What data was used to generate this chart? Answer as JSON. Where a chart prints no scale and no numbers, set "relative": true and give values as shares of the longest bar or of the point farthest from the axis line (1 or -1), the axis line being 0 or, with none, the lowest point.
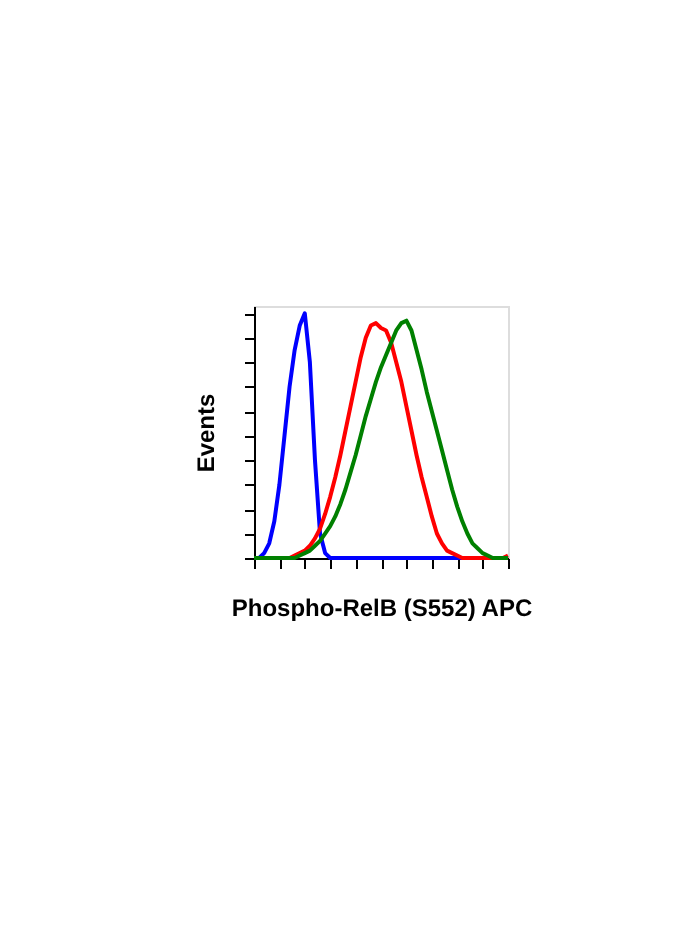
{
  "chart_data": {
    "type": "line",
    "relative": true,
    "xlabel": "Phospho-RelB (S552) APC",
    "ylabel": "Events",
    "categories": [
      null,
      null,
      null,
      null,
      null,
      null,
      null,
      null,
      null,
      null,
      null,
      null,
      null,
      null,
      null,
      null,
      null,
      null,
      null,
      null,
      null,
      null,
      null,
      null,
      null,
      null,
      null,
      null,
      null,
      null,
      null,
      null,
      null,
      null,
      null,
      null,
      null,
      null,
      null,
      null,
      null,
      null,
      null,
      null,
      null,
      null,
      null,
      null,
      null,
      null,
      null
    ],
    "series": [
      {
        "color": "#0000ff",
        "values": [
          0,
          0,
          0.02,
          0.06,
          0.15,
          0.3,
          0.5,
          0.7,
          0.85,
          0.95,
          1.0,
          0.8,
          0.4,
          0.1,
          0.02,
          0,
          0,
          0,
          0,
          0,
          0,
          0,
          0,
          0,
          0,
          0,
          0,
          0,
          0,
          0,
          0,
          0,
          0,
          0,
          0,
          0,
          0,
          0,
          0,
          0,
          0,
          0,
          0,
          null,
          null,
          null,
          null,
          null,
          null,
          null,
          null
        ]
      },
      {
        "color": "#ff0000",
        "values": [
          null,
          null,
          null,
          null,
          null,
          0,
          0,
          0,
          0.01,
          0.02,
          0.03,
          0.05,
          0.08,
          0.12,
          0.18,
          0.25,
          0.33,
          0.42,
          0.52,
          0.62,
          0.72,
          0.82,
          0.9,
          0.95,
          0.96,
          0.94,
          0.93,
          0.88,
          0.8,
          0.72,
          0.62,
          0.52,
          0.42,
          0.33,
          0.25,
          0.17,
          0.1,
          0.06,
          0.03,
          0.02,
          0.01,
          0,
          0,
          0,
          0,
          0,
          0,
          0,
          0,
          0,
          0.01
        ]
      },
      {
        "color": "#008000",
        "values": [
          0,
          0,
          0,
          0,
          0,
          0,
          0,
          0,
          0,
          0.01,
          0.02,
          0.03,
          0.05,
          0.07,
          0.1,
          0.13,
          0.17,
          0.22,
          0.28,
          0.35,
          0.42,
          0.5,
          0.58,
          0.65,
          0.72,
          0.78,
          0.83,
          0.88,
          0.93,
          0.96,
          0.97,
          0.93,
          0.85,
          0.77,
          0.68,
          0.6,
          0.52,
          0.44,
          0.36,
          0.28,
          0.21,
          0.15,
          0.1,
          0.06,
          0.04,
          0.02,
          0.01,
          0,
          0,
          0,
          0
        ]
      }
    ],
    "tick_labels": false,
    "grid": false,
    "legend": false,
    "marker": "none",
    "line_style": "solid"
  }
}
